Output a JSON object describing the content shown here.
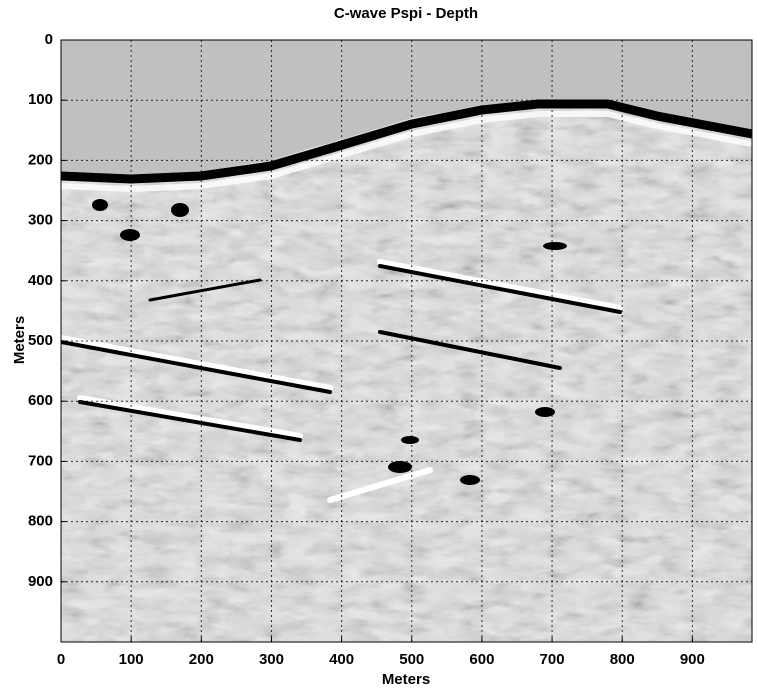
{
  "chart_data": {
    "type": "image",
    "title": "C-wave Pspi - Depth",
    "x_label": "Meters",
    "y_label": "Meters",
    "xlim": [
      0,
      985
    ],
    "ylim": [
      0,
      1000
    ],
    "y_inverted": true,
    "xticks": [
      0,
      100,
      200,
      300,
      400,
      500,
      600,
      700,
      800,
      900
    ],
    "yticks": [
      0,
      100,
      200,
      300,
      400,
      500,
      600,
      700,
      800,
      900
    ],
    "grid": true
  }
}
